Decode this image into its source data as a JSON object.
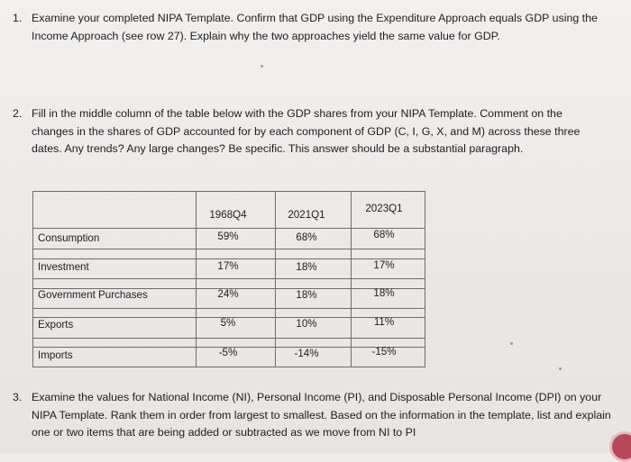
{
  "q1": {
    "number": "1.",
    "text": "Examine your completed NIPA Template. Confirm that GDP using the Expenditure Approach equals GDP using the Income Approach (see row 27). Explain why the two approaches yield the same value for GDP."
  },
  "q2": {
    "number": "2.",
    "text": "Fill in the middle column of the table below with the GDP shares from your NIPA Template. Comment on the changes in the shares of GDP accounted for by each component of GDP (C, I, G, X, and M) across these three dates. Any trends? Any large changes? Be specific. This answer should be a substantial paragraph."
  },
  "table": {
    "headers": [
      "1968Q4",
      "2021Q1",
      "2023Q1"
    ],
    "rows": [
      {
        "label": "Consumption",
        "values": [
          "59%",
          "68%",
          "68%"
        ]
      },
      {
        "label": "Investment",
        "values": [
          "17%",
          "18%",
          "17%"
        ]
      },
      {
        "label": "Government Purchases",
        "values": [
          "24%",
          "18%",
          "18%"
        ]
      },
      {
        "label": "Exports",
        "values": [
          "5%",
          "10%",
          "11%"
        ]
      },
      {
        "label": "Imports",
        "values": [
          "-5%",
          "-14%",
          "-15%"
        ]
      }
    ]
  },
  "q3": {
    "number": "3.",
    "text": "Examine the values for National Income (NI), Personal Income (PI), and Disposable Personal Income (DPI) on your NIPA Template. Rank them in order from largest to smallest. Based on the information in the template, list and explain one or two items that are being added or subtracted as we move from NI to PI"
  },
  "colors": {
    "page": "#eeeceb",
    "text": "#1d1d1f",
    "table_border": "#6d6d6d",
    "corner_icon": "#b7485a"
  }
}
